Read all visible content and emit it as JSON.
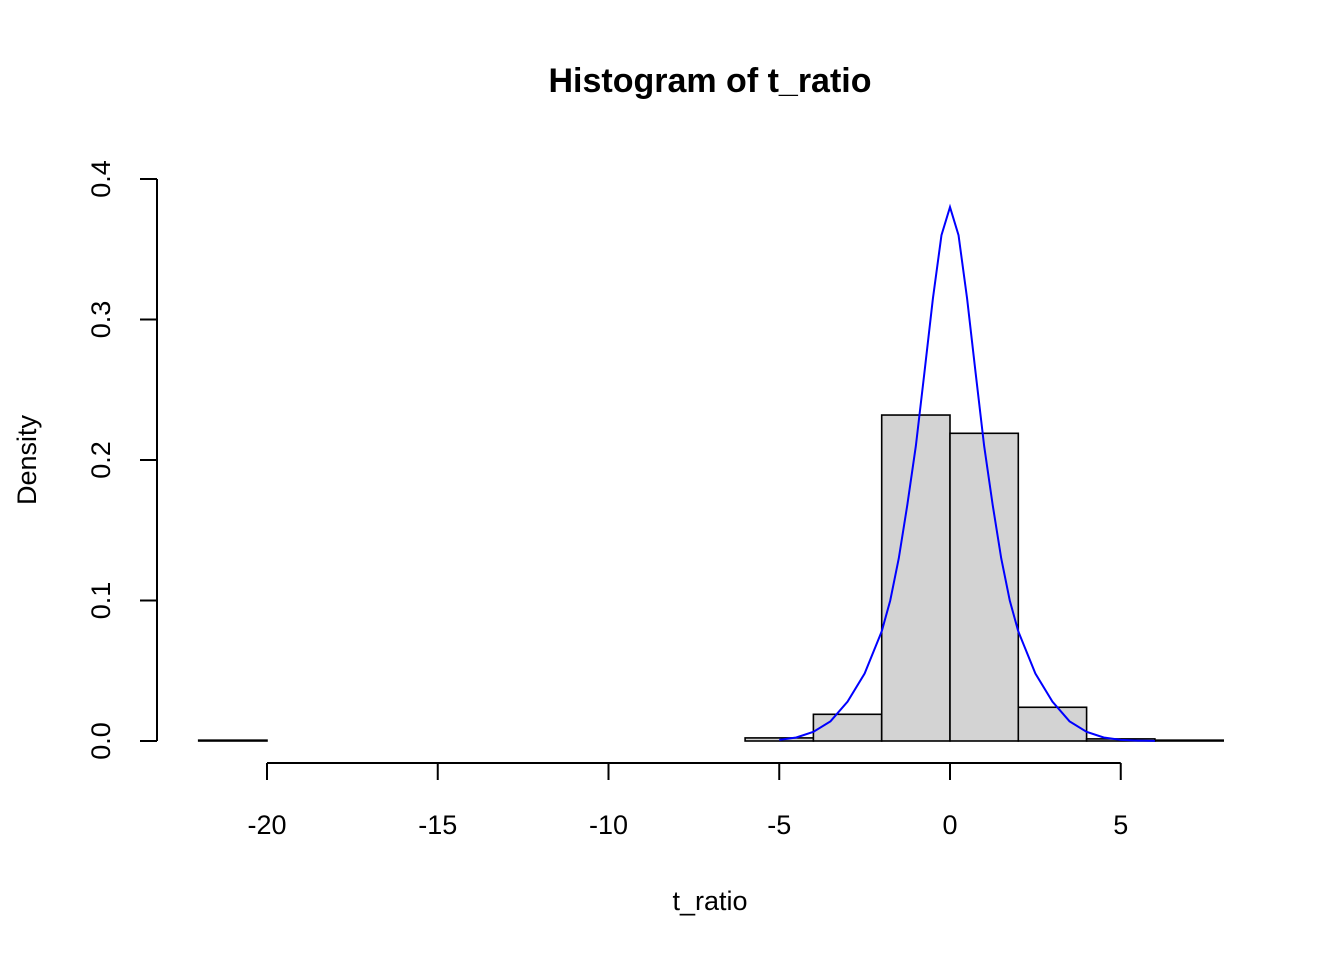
{
  "chart_data": {
    "type": "bar",
    "title": "Histogram of t_ratio",
    "xlabel": "t_ratio",
    "ylabel": "Density",
    "xlim": [
      -22,
      8
    ],
    "ylim": [
      0,
      0.4
    ],
    "x_ticks": [
      -20,
      -15,
      -10,
      -5,
      0,
      5
    ],
    "x_tick_labels": [
      "-20",
      "-15",
      "-10",
      "-5",
      "0",
      "5"
    ],
    "y_ticks": [
      0.0,
      0.1,
      0.2,
      0.3,
      0.4
    ],
    "y_tick_labels": [
      "0.0",
      "0.1",
      "0.2",
      "0.3",
      "0.4"
    ],
    "bins": [
      {
        "start": -22,
        "end": -20,
        "density": 0.0006
      },
      {
        "start": -20,
        "end": -18,
        "density": 0.0
      },
      {
        "start": -18,
        "end": -16,
        "density": 0.0
      },
      {
        "start": -16,
        "end": -14,
        "density": 0.0
      },
      {
        "start": -14,
        "end": -12,
        "density": 0.0
      },
      {
        "start": -12,
        "end": -10,
        "density": 0.0
      },
      {
        "start": -10,
        "end": -8,
        "density": 0.0
      },
      {
        "start": -8,
        "end": -6,
        "density": 0.0
      },
      {
        "start": -6,
        "end": -4,
        "density": 0.0022
      },
      {
        "start": -4,
        "end": -2,
        "density": 0.019
      },
      {
        "start": -2,
        "end": 0,
        "density": 0.232
      },
      {
        "start": 0,
        "end": 2,
        "density": 0.219
      },
      {
        "start": 2,
        "end": 4,
        "density": 0.024
      },
      {
        "start": 4,
        "end": 6,
        "density": 0.0015
      },
      {
        "start": 6,
        "end": 8,
        "density": 0.0006
      }
    ],
    "overlay": {
      "type": "line",
      "name": "density curve",
      "color": "#0000ff",
      "x": [
        -5,
        -4.5,
        -4,
        -3.5,
        -3,
        -2.5,
        -2,
        -1.75,
        -1.5,
        -1.25,
        -1,
        -0.75,
        -0.5,
        -0.25,
        0,
        0.25,
        0.5,
        0.75,
        1,
        1.25,
        1.5,
        1.75,
        2,
        2.5,
        3,
        3.5,
        4,
        4.5,
        5,
        5.5,
        6
      ],
      "y": [
        0.0008,
        0.0025,
        0.0065,
        0.014,
        0.028,
        0.048,
        0.078,
        0.1,
        0.13,
        0.168,
        0.21,
        0.262,
        0.315,
        0.36,
        0.38,
        0.36,
        0.315,
        0.262,
        0.21,
        0.168,
        0.13,
        0.1,
        0.078,
        0.048,
        0.028,
        0.014,
        0.0065,
        0.0025,
        0.0008,
        0.0003,
        0.0001
      ]
    }
  }
}
